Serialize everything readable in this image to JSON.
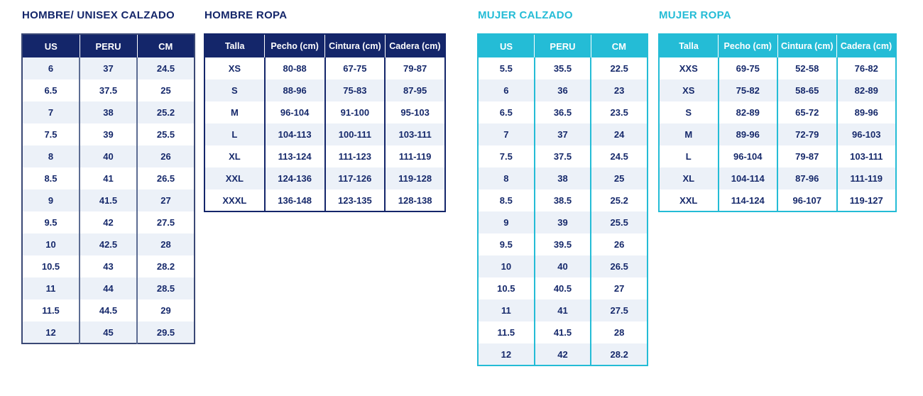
{
  "colors": {
    "navy": "#14266a",
    "cyan": "#24bcd6",
    "row_alt": "#ecf1f8",
    "cell_text": "#16296b",
    "slate_divider": "#5c6c92",
    "navy_table_outer_border": "#3a4875",
    "page_background": "#ffffff",
    "header_text": "#ffffff"
  },
  "chart_data": [
    {
      "type": "table",
      "id": "hombre-unisex-calzado",
      "title": "HOMBRE/ UNISEX CALZADO",
      "accent": "#14266a",
      "border": "#3a4875",
      "divider": "#5c6c92",
      "first_row_shaded": true,
      "columns": [
        "US",
        "PERU",
        "CM"
      ],
      "rows": [
        [
          "6",
          "37",
          "24.5"
        ],
        [
          "6.5",
          "37.5",
          "25"
        ],
        [
          "7",
          "38",
          "25.2"
        ],
        [
          "7.5",
          "39",
          "25.5"
        ],
        [
          "8",
          "40",
          "26"
        ],
        [
          "8.5",
          "41",
          "26.5"
        ],
        [
          "9",
          "41.5",
          "27"
        ],
        [
          "9.5",
          "42",
          "27.5"
        ],
        [
          "10",
          "42.5",
          "28"
        ],
        [
          "10.5",
          "43",
          "28.2"
        ],
        [
          "11",
          "44",
          "28.5"
        ],
        [
          "11.5",
          "44.5",
          "29"
        ],
        [
          "12",
          "45",
          "29.5"
        ]
      ]
    },
    {
      "type": "table",
      "id": "hombre-ropa",
      "title": "HOMBRE ROPA",
      "accent": "#14266a",
      "border": "#14266a",
      "divider": "#14266a",
      "first_row_shaded": false,
      "columns": [
        "Talla",
        "Pecho (cm)",
        "Cintura (cm)",
        "Cadera (cm)"
      ],
      "rows": [
        [
          "XS",
          "80-88",
          "67-75",
          "79-87"
        ],
        [
          "S",
          "88-96",
          "75-83",
          "87-95"
        ],
        [
          "M",
          "96-104",
          "91-100",
          "95-103"
        ],
        [
          "L",
          "104-113",
          "100-111",
          "103-111"
        ],
        [
          "XL",
          "113-124",
          "111-123",
          "111-119"
        ],
        [
          "XXL",
          "124-136",
          "117-126",
          "119-128"
        ],
        [
          "XXXL",
          "136-148",
          "123-135",
          "128-138"
        ]
      ]
    },
    {
      "type": "table",
      "id": "mujer-calzado",
      "title": "MUJER CALZADO",
      "accent": "#24bcd6",
      "border": "#24bcd6",
      "divider": "#24bcd6",
      "first_row_shaded": false,
      "columns": [
        "US",
        "PERU",
        "CM"
      ],
      "rows": [
        [
          "5.5",
          "35.5",
          "22.5"
        ],
        [
          "6",
          "36",
          "23"
        ],
        [
          "6.5",
          "36.5",
          "23.5"
        ],
        [
          "7",
          "37",
          "24"
        ],
        [
          "7.5",
          "37.5",
          "24.5"
        ],
        [
          "8",
          "38",
          "25"
        ],
        [
          "8.5",
          "38.5",
          "25.2"
        ],
        [
          "9",
          "39",
          "25.5"
        ],
        [
          "9.5",
          "39.5",
          "26"
        ],
        [
          "10",
          "40",
          "26.5"
        ],
        [
          "10.5",
          "40.5",
          "27"
        ],
        [
          "11",
          "41",
          "27.5"
        ],
        [
          "11.5",
          "41.5",
          "28"
        ],
        [
          "12",
          "42",
          "28.2"
        ]
      ]
    },
    {
      "type": "table",
      "id": "mujer-ropa",
      "title": "MUJER ROPA",
      "accent": "#24bcd6",
      "border": "#24bcd6",
      "divider": "#24bcd6",
      "first_row_shaded": false,
      "columns": [
        "Talla",
        "Pecho (cm)",
        "Cintura (cm)",
        "Cadera (cm)"
      ],
      "rows": [
        [
          "XXS",
          "69-75",
          "52-58",
          "76-82"
        ],
        [
          "XS",
          "75-82",
          "58-65",
          "82-89"
        ],
        [
          "S",
          "82-89",
          "65-72",
          "89-96"
        ],
        [
          "M",
          "89-96",
          "72-79",
          "96-103"
        ],
        [
          "L",
          "96-104",
          "79-87",
          "103-111"
        ],
        [
          "XL",
          "104-114",
          "87-96",
          "111-119"
        ],
        [
          "XXL",
          "114-124",
          "96-107",
          "119-127"
        ]
      ]
    }
  ]
}
